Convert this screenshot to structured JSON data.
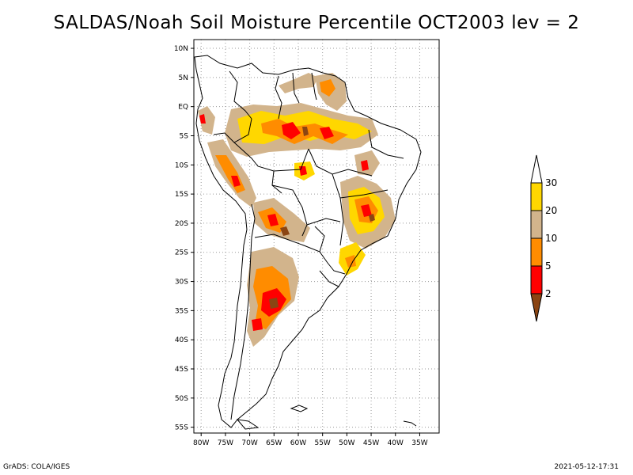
{
  "title": "SALDAS/Noah Soil Moisture Percentile OCT2003 lev = 2",
  "map": {
    "lat_labels": [
      "10N",
      "5N",
      "EQ",
      "5S",
      "10S",
      "15S",
      "20S",
      "25S",
      "30S",
      "35S",
      "40S",
      "45S",
      "50S",
      "55S"
    ],
    "lat_values": [
      10,
      5,
      0,
      -5,
      -10,
      -15,
      -20,
      -25,
      -30,
      -35,
      -40,
      -45,
      -50,
      -55
    ],
    "lon_labels": [
      "80W",
      "75W",
      "70W",
      "65W",
      "60W",
      "55W",
      "50W",
      "45W",
      "40W",
      "35W"
    ],
    "lon_values": [
      -80,
      -75,
      -70,
      -65,
      -60,
      -55,
      -50,
      -45,
      -40,
      -35
    ],
    "extent": {
      "lon": [
        -81.5,
        -31
      ],
      "lat": [
        -56,
        11.5
      ]
    },
    "grid": "dotted"
  },
  "legend": {
    "labels": [
      "2",
      "5",
      "10",
      "20",
      "30"
    ],
    "bands": [
      {
        "range": "<2",
        "color": "#8b4513"
      },
      {
        "range": "2-5",
        "color": "#ff0000"
      },
      {
        "range": "5-10",
        "color": "#ff8c00"
      },
      {
        "range": "10-20",
        "color": "#d2b48c"
      },
      {
        "range": "20-30",
        "color": "#ffd700"
      },
      {
        "range": ">30",
        "color": "#ffffff"
      }
    ]
  },
  "footer": {
    "left": "GrADS: COLA/IGES",
    "right": "2021-05-12-17:31"
  }
}
